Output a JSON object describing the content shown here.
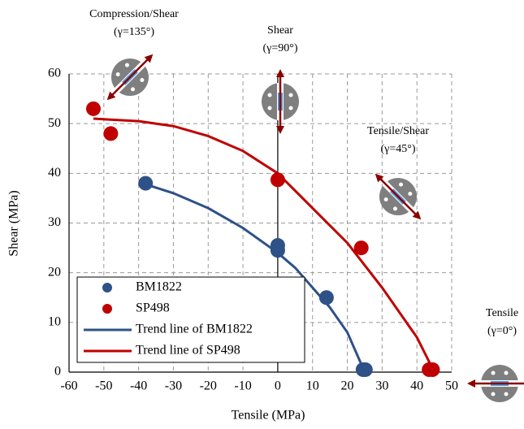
{
  "chart_data": {
    "type": "scatter",
    "xlabel": "Tensile (MPa)",
    "ylabel": "Shear  (MPa)",
    "xlim": [
      -60,
      50
    ],
    "ylim": [
      0,
      60
    ],
    "xticks": [
      -60,
      -50,
      -40,
      -30,
      -20,
      -10,
      0,
      10,
      20,
      30,
      40,
      50
    ],
    "yticks": [
      0,
      10,
      20,
      30,
      40,
      50,
      60
    ],
    "grid": true,
    "series": [
      {
        "name": "BM1822",
        "type": "scatter",
        "color": "#2e5187",
        "x": [
          -38,
          0,
          0,
          14,
          24.5,
          25.2
        ],
        "values": [
          38,
          25.5,
          24.5,
          15,
          0.5,
          0.5
        ]
      },
      {
        "name": "SP498",
        "type": "scatter",
        "color": "#c00000",
        "x": [
          -53,
          -48,
          0,
          24,
          43.5,
          44.5
        ],
        "values": [
          53,
          48,
          38.7,
          25,
          0.5,
          0.5
        ]
      },
      {
        "name": "Trend line of BM1822",
        "type": "line",
        "color": "#2e5187",
        "x": [
          -38,
          -30,
          -20,
          -10,
          0,
          5,
          10,
          15,
          20,
          25
        ],
        "values": [
          37.8,
          36,
          33,
          29,
          24,
          21,
          17,
          13,
          8,
          0
        ]
      },
      {
        "name": "Trend line of SP498",
        "type": "line",
        "color": "#c00000",
        "x": [
          -53,
          -40,
          -30,
          -20,
          -10,
          0,
          10,
          20,
          30,
          40,
          45
        ],
        "values": [
          51,
          50.5,
          49.5,
          47.5,
          44.5,
          40,
          33,
          26,
          17,
          7,
          0
        ]
      }
    ],
    "annotations": [
      [
        "Compression/Shear",
        "(γ=135°)"
      ],
      [
        "Shear",
        "(γ=90°)"
      ],
      [
        "Tensile/Shear",
        "(γ=45°)"
      ],
      [
        "Tensile",
        "(γ=0°)"
      ]
    ]
  }
}
